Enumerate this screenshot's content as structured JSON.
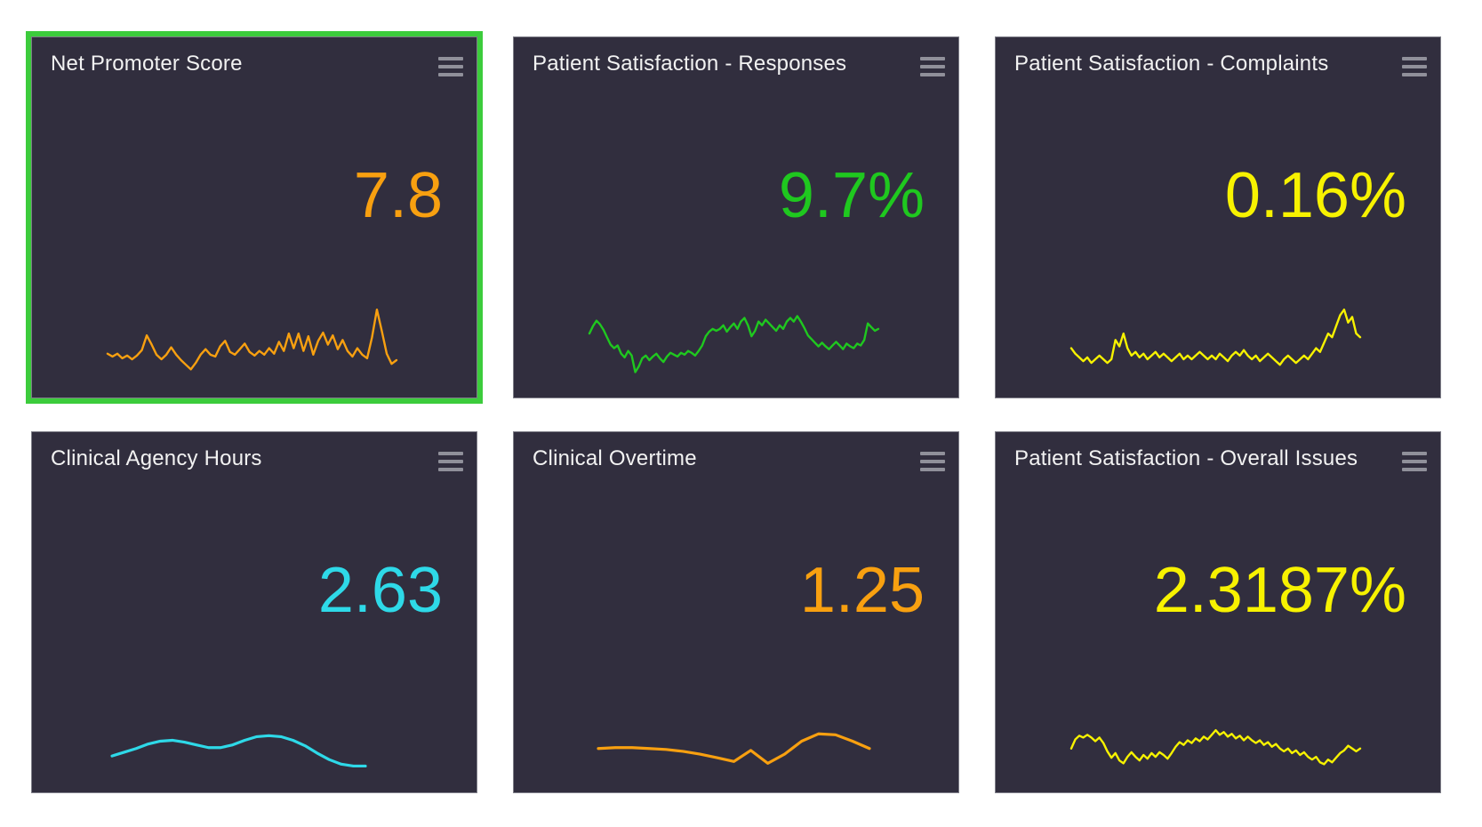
{
  "selection_color": "#3CCC3C",
  "tile_background": "#312E3E",
  "tiles": [
    {
      "title": "Net Promoter Score",
      "value": "7.8",
      "accent_color": "#F8A010",
      "selected": true,
      "menu_icon": "hamburger-icon"
    },
    {
      "title": "Patient Satisfaction - Responses",
      "value": "9.7%",
      "accent_color": "#1FC81F",
      "selected": false,
      "menu_icon": "hamburger-icon"
    },
    {
      "title": "Patient Satisfaction - Complaints",
      "value": "0.16%",
      "accent_color": "#F7F200",
      "selected": false,
      "menu_icon": "hamburger-icon"
    },
    {
      "title": "Clinical Agency Hours",
      "value": "2.63",
      "accent_color": "#2ED9E8",
      "selected": false,
      "menu_icon": "hamburger-icon"
    },
    {
      "title": "Clinical Overtime",
      "value": "1.25",
      "accent_color": "#F8A010",
      "selected": false,
      "menu_icon": "hamburger-icon"
    },
    {
      "title": "Patient Satisfaction - Overall Issues",
      "value": "2.3187%",
      "accent_color": "#F7F200",
      "selected": false,
      "menu_icon": "hamburger-icon"
    }
  ],
  "chart_data": [
    {
      "tile": "Net Promoter Score",
      "type": "line",
      "color": "#F8A010",
      "stroke_width": 2.4,
      "x_span": [
        0.17,
        0.82
      ],
      "y_band": [
        0.7,
        0.955
      ],
      "axes": "hidden",
      "grid": "off",
      "values": [
        0.3,
        0.27,
        0.3,
        0.25,
        0.28,
        0.24,
        0.28,
        0.34,
        0.5,
        0.4,
        0.29,
        0.24,
        0.29,
        0.37,
        0.29,
        0.23,
        0.18,
        0.13,
        0.2,
        0.29,
        0.35,
        0.29,
        0.27,
        0.38,
        0.44,
        0.32,
        0.29,
        0.35,
        0.41,
        0.32,
        0.28,
        0.33,
        0.29,
        0.36,
        0.3,
        0.43,
        0.33,
        0.52,
        0.36,
        0.52,
        0.33,
        0.49,
        0.29,
        0.44,
        0.53,
        0.4,
        0.5,
        0.35,
        0.45,
        0.33,
        0.27,
        0.36,
        0.29,
        0.25,
        0.48,
        0.78,
        0.55,
        0.3,
        0.19,
        0.23
      ]
    },
    {
      "tile": "Patient Satisfaction - Responses",
      "type": "line",
      "color": "#1FC81F",
      "stroke_width": 2.4,
      "x_span": [
        0.17,
        0.82
      ],
      "y_band": [
        0.7,
        0.955
      ],
      "axes": "hidden",
      "grid": "off",
      "values": [
        0.52,
        0.6,
        0.66,
        0.62,
        0.56,
        0.48,
        0.4,
        0.36,
        0.39,
        0.3,
        0.26,
        0.33,
        0.28,
        0.1,
        0.16,
        0.25,
        0.28,
        0.23,
        0.27,
        0.3,
        0.25,
        0.21,
        0.27,
        0.31,
        0.29,
        0.27,
        0.31,
        0.29,
        0.33,
        0.31,
        0.28,
        0.33,
        0.39,
        0.49,
        0.54,
        0.57,
        0.55,
        0.57,
        0.61,
        0.54,
        0.59,
        0.63,
        0.57,
        0.65,
        0.69,
        0.61,
        0.49,
        0.55,
        0.65,
        0.61,
        0.67,
        0.63,
        0.59,
        0.55,
        0.61,
        0.57,
        0.65,
        0.69,
        0.65,
        0.71,
        0.65,
        0.58,
        0.5,
        0.46,
        0.42,
        0.38,
        0.42,
        0.38,
        0.35,
        0.39,
        0.43,
        0.39,
        0.35,
        0.41,
        0.38,
        0.36,
        0.41,
        0.39,
        0.45,
        0.63,
        0.59,
        0.55,
        0.57
      ]
    },
    {
      "tile": "Patient Satisfaction - Complaints",
      "type": "line",
      "color": "#F7F200",
      "stroke_width": 2.4,
      "x_span": [
        0.17,
        0.82
      ],
      "y_band": [
        0.7,
        0.955
      ],
      "axes": "hidden",
      "grid": "off",
      "values": [
        0.36,
        0.3,
        0.26,
        0.22,
        0.26,
        0.2,
        0.24,
        0.28,
        0.24,
        0.2,
        0.24,
        0.45,
        0.38,
        0.52,
        0.36,
        0.28,
        0.32,
        0.26,
        0.3,
        0.24,
        0.28,
        0.32,
        0.26,
        0.3,
        0.26,
        0.22,
        0.26,
        0.3,
        0.24,
        0.28,
        0.24,
        0.28,
        0.32,
        0.28,
        0.24,
        0.28,
        0.24,
        0.3,
        0.26,
        0.22,
        0.28,
        0.32,
        0.28,
        0.34,
        0.28,
        0.24,
        0.28,
        0.22,
        0.26,
        0.3,
        0.26,
        0.22,
        0.18,
        0.24,
        0.28,
        0.24,
        0.2,
        0.24,
        0.28,
        0.24,
        0.3,
        0.36,
        0.32,
        0.42,
        0.52,
        0.48,
        0.6,
        0.72,
        0.78,
        0.64,
        0.7,
        0.52,
        0.48
      ]
    },
    {
      "tile": "Clinical Agency Hours",
      "type": "line",
      "color": "#2ED9E8",
      "stroke_width": 3.2,
      "x_span": [
        0.18,
        0.75
      ],
      "y_band": [
        0.7,
        0.955
      ],
      "axes": "hidden",
      "grid": "off",
      "values": [
        0.22,
        0.26,
        0.3,
        0.35,
        0.38,
        0.39,
        0.37,
        0.34,
        0.31,
        0.31,
        0.34,
        0.39,
        0.43,
        0.44,
        0.43,
        0.39,
        0.33,
        0.25,
        0.18,
        0.13,
        0.11,
        0.11
      ]
    },
    {
      "tile": "Clinical Overtime",
      "type": "line",
      "color": "#F8A010",
      "stroke_width": 3.2,
      "x_span": [
        0.19,
        0.8
      ],
      "y_band": [
        0.7,
        0.955
      ],
      "axes": "hidden",
      "grid": "off",
      "values": [
        0.3,
        0.31,
        0.31,
        0.3,
        0.29,
        0.27,
        0.24,
        0.2,
        0.16,
        0.28,
        0.14,
        0.24,
        0.38,
        0.46,
        0.45,
        0.38,
        0.3
      ]
    },
    {
      "tile": "Patient Satisfaction - Overall Issues",
      "type": "line",
      "color": "#F7F200",
      "stroke_width": 2.4,
      "x_span": [
        0.17,
        0.82
      ],
      "y_band": [
        0.7,
        0.955
      ],
      "axes": "hidden",
      "grid": "off",
      "values": [
        0.3,
        0.4,
        0.44,
        0.42,
        0.45,
        0.42,
        0.38,
        0.42,
        0.36,
        0.27,
        0.2,
        0.25,
        0.17,
        0.14,
        0.21,
        0.26,
        0.21,
        0.17,
        0.23,
        0.19,
        0.25,
        0.21,
        0.26,
        0.23,
        0.19,
        0.25,
        0.32,
        0.37,
        0.34,
        0.39,
        0.36,
        0.41,
        0.38,
        0.43,
        0.4,
        0.45,
        0.5,
        0.45,
        0.48,
        0.43,
        0.46,
        0.41,
        0.44,
        0.39,
        0.43,
        0.39,
        0.36,
        0.39,
        0.34,
        0.37,
        0.32,
        0.35,
        0.3,
        0.27,
        0.3,
        0.25,
        0.28,
        0.23,
        0.26,
        0.21,
        0.18,
        0.21,
        0.15,
        0.13,
        0.18,
        0.15,
        0.2,
        0.25,
        0.28,
        0.33,
        0.3,
        0.27,
        0.3
      ]
    }
  ]
}
